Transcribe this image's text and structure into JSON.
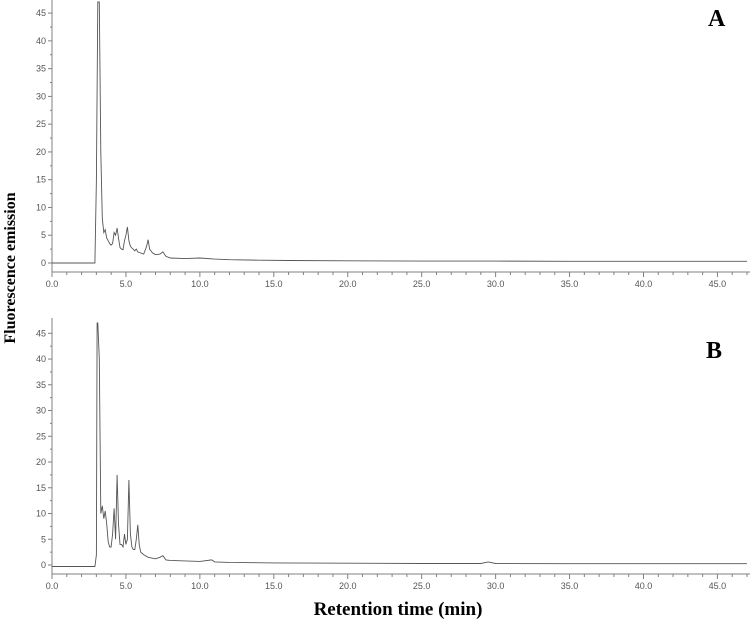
{
  "figure": {
    "ylabel": "Fluorescence emission",
    "xlabel": "Retention time (min)"
  },
  "chart_data": [
    {
      "type": "line",
      "panel": "A",
      "xlim": [
        0,
        47
      ],
      "ylim": [
        0,
        47
      ],
      "x_ticks": [
        "0.0",
        "5.0",
        "10.0",
        "15.0",
        "20.0",
        "25.0",
        "30.0",
        "35.0",
        "40.0",
        "45.0"
      ],
      "y_ticks": [
        "0",
        "5",
        "10",
        "15",
        "20",
        "25",
        "30",
        "35",
        "40",
        "45"
      ],
      "grid": false,
      "series": [
        {
          "x": [
            0,
            2.9,
            3.0,
            3.1,
            3.2,
            3.3,
            3.4,
            3.5,
            3.6,
            3.7,
            3.8,
            3.9,
            4.0,
            4.1,
            4.2,
            4.3,
            4.4,
            4.5,
            4.6,
            4.7,
            4.8,
            4.9,
            5.0,
            5.1,
            5.2,
            5.3,
            5.4,
            5.6,
            5.7,
            5.8,
            6.0,
            6.2,
            6.4,
            6.5,
            6.6,
            6.8,
            7.0,
            7.3,
            7.5,
            7.7,
            8.0,
            9.0,
            10.0,
            11.0,
            12.0,
            14.0,
            16.0,
            20.0,
            25.0,
            30.0,
            35.0,
            40.0,
            47.0
          ],
          "y": [
            0,
            0,
            15,
            47,
            47,
            20,
            8,
            5.5,
            6.0,
            4.5,
            4.0,
            3.5,
            3.2,
            3.5,
            5.5,
            5.0,
            6.3,
            4.5,
            2.8,
            2.5,
            2.4,
            4.0,
            5.0,
            6.5,
            4.0,
            3.0,
            2.7,
            2.2,
            2.5,
            2.0,
            1.8,
            1.6,
            3.0,
            4.2,
            2.5,
            1.8,
            1.5,
            1.6,
            2.0,
            1.2,
            0.9,
            0.8,
            0.9,
            0.7,
            0.6,
            0.5,
            0.45,
            0.4,
            0.35,
            0.35,
            0.3,
            0.3,
            0.3
          ]
        }
      ]
    },
    {
      "type": "line",
      "panel": "B",
      "xlim": [
        0,
        47
      ],
      "ylim": [
        0,
        47
      ],
      "x_ticks": [
        "0.0",
        "5.0",
        "10.0",
        "15.0",
        "20.0",
        "25.0",
        "30.0",
        "35.0",
        "40.0",
        "45.0"
      ],
      "y_ticks": [
        "0",
        "5",
        "10",
        "15",
        "20",
        "25",
        "30",
        "35",
        "40",
        "45"
      ],
      "grid": false,
      "series": [
        {
          "x": [
            0,
            2.9,
            3.0,
            3.05,
            3.1,
            3.2,
            3.3,
            3.4,
            3.5,
            3.6,
            3.7,
            3.8,
            3.9,
            4.0,
            4.1,
            4.2,
            4.3,
            4.4,
            4.5,
            4.6,
            4.7,
            4.8,
            4.9,
            5.0,
            5.1,
            5.2,
            5.3,
            5.4,
            5.5,
            5.6,
            5.7,
            5.8,
            5.9,
            6.0,
            6.2,
            6.5,
            7.0,
            7.3,
            7.5,
            7.7,
            8.0,
            9.0,
            10.0,
            10.8,
            11.0,
            12.0,
            15.0,
            20.0,
            25.0,
            29.0,
            29.5,
            30.0,
            35.0,
            40.0,
            47.0
          ],
          "y": [
            -0.3,
            -0.3,
            2,
            47,
            47,
            40,
            10,
            11.5,
            9,
            10.5,
            8,
            4.5,
            3.5,
            3.5,
            6,
            11,
            5,
            17.5,
            8,
            4,
            4,
            3.5,
            6,
            4,
            5,
            16.5,
            6,
            3.5,
            3,
            3,
            5,
            7.8,
            4,
            2.5,
            2,
            1.5,
            1.2,
            1.5,
            1.8,
            1.0,
            0.9,
            0.8,
            0.7,
            1.0,
            0.6,
            0.5,
            0.4,
            0.35,
            0.3,
            0.3,
            0.6,
            0.3,
            0.25,
            0.25,
            0.25
          ]
        }
      ]
    }
  ]
}
